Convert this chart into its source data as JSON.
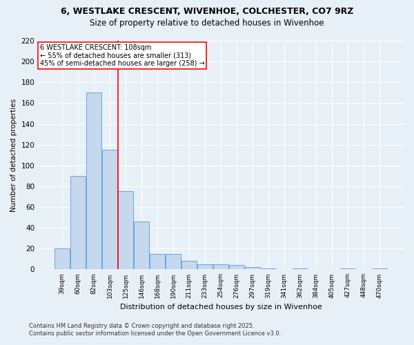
{
  "title_line1": "6, WESTLAKE CRESCENT, WIVENHOE, COLCHESTER, CO7 9RZ",
  "title_line2": "Size of property relative to detached houses in Wivenhoe",
  "xlabel": "Distribution of detached houses by size in Wivenhoe",
  "ylabel": "Number of detached properties",
  "categories": [
    "39sqm",
    "60sqm",
    "82sqm",
    "103sqm",
    "125sqm",
    "146sqm",
    "168sqm",
    "190sqm",
    "211sqm",
    "233sqm",
    "254sqm",
    "276sqm",
    "297sqm",
    "319sqm",
    "341sqm",
    "362sqm",
    "384sqm",
    "405sqm",
    "427sqm",
    "448sqm",
    "470sqm"
  ],
  "values": [
    20,
    90,
    170,
    115,
    75,
    46,
    15,
    15,
    8,
    5,
    5,
    4,
    2,
    1,
    0,
    1,
    0,
    0,
    1,
    0,
    1
  ],
  "bar_color": "#c5d8ed",
  "bar_edge_color": "#5b9bd5",
  "reference_line_label": "6 WESTLAKE CRESCENT: 108sqm",
  "annotation_line1": "← 55% of detached houses are smaller (313)",
  "annotation_line2": "45% of semi-detached houses are larger (258) →",
  "ylim": [
    0,
    220
  ],
  "yticks": [
    0,
    20,
    40,
    60,
    80,
    100,
    120,
    140,
    160,
    180,
    200,
    220
  ],
  "footer_line1": "Contains HM Land Registry data © Crown copyright and database right 2025.",
  "footer_line2": "Contains public sector information licensed under the Open Government Licence v3.0.",
  "fig_bg_color": "#e8f0f7",
  "plot_bg_color": "#e8f0f7",
  "bar_width": 0.95,
  "ref_line_index": 3.5,
  "grid_color": "#ffffff",
  "title1_fontsize": 9,
  "title2_fontsize": 8.5
}
